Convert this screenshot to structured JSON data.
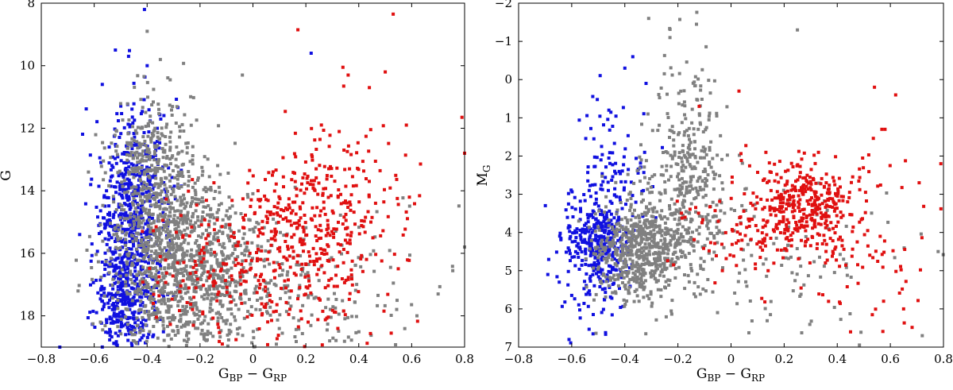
{
  "chart_data": [
    {
      "type": "scatter",
      "panel": "left",
      "xlabel": "G_BP − G_RP",
      "xlabel_main": "G",
      "xlabel_sub1": "BP",
      "xlabel_minus": " − G",
      "xlabel_sub2": "RP",
      "ylabel": "G",
      "ylabel_main": "G",
      "ylabel_sub": "",
      "xlim": [
        -0.8,
        0.8
      ],
      "ylim": [
        19,
        8
      ],
      "y_inverted": true,
      "xticks": [
        -0.8,
        -0.6,
        -0.4,
        -0.2,
        0,
        0.2,
        0.4,
        0.6,
        0.8
      ],
      "xtick_labels": [
        "−0.8",
        "−0.6",
        "−0.4",
        "−0.2",
        "0",
        "0.2",
        "0.4",
        "0.6",
        "0.8"
      ],
      "yticks": [
        8,
        10,
        12,
        14,
        16,
        18
      ],
      "ytick_labels": [
        "8",
        "10",
        "12",
        "14",
        "16",
        "18"
      ],
      "series": [
        {
          "name": "blue",
          "color": "#1010e0",
          "count": 900,
          "distribution": "clusters",
          "clusters": [
            {
              "weight": 0.5,
              "x_mean": -0.46,
              "x_sd": 0.06,
              "y_mean": 15.6,
              "y_sd": 1.5
            },
            {
              "weight": 0.3,
              "x_mean": -0.5,
              "x_sd": 0.05,
              "y_mean": 17.5,
              "y_sd": 1.0
            },
            {
              "weight": 0.2,
              "x_mean": -0.44,
              "x_sd": 0.08,
              "y_mean": 13.5,
              "y_sd": 1.2
            }
          ],
          "highlights": [
            {
              "x": -0.41,
              "y": 8.2
            },
            {
              "x": -0.52,
              "y": 9.5
            },
            {
              "x": -0.47,
              "y": 9.7
            },
            {
              "x": -0.4,
              "y": 10.0
            },
            {
              "x": 0.22,
              "y": 9.6
            },
            {
              "x": -0.73,
              "y": 19.0
            }
          ]
        },
        {
          "name": "gray",
          "color": "#808080",
          "count": 1700,
          "distribution": "clusters",
          "clusters": [
            {
              "weight": 0.45,
              "x_mean": -0.33,
              "x_sd": 0.11,
              "y_mean": 15.8,
              "y_sd": 1.6
            },
            {
              "weight": 0.3,
              "x_mean": -0.18,
              "x_sd": 0.14,
              "y_mean": 16.7,
              "y_sd": 1.3
            },
            {
              "weight": 0.15,
              "x_mean": -0.38,
              "x_sd": 0.08,
              "y_mean": 13.0,
              "y_sd": 1.1
            },
            {
              "weight": 0.1,
              "x_mean": 0.2,
              "x_sd": 0.25,
              "y_mean": 17.2,
              "y_sd": 1.2
            }
          ],
          "highlights": [
            {
              "x": -0.4,
              "y": 8.9
            },
            {
              "x": -0.35,
              "y": 9.8
            },
            {
              "x": -0.04,
              "y": 10.3
            },
            {
              "x": 0.62,
              "y": 18.0
            },
            {
              "x": 0.8,
              "y": 15.8
            },
            {
              "x": 0.7,
              "y": 17.3
            }
          ]
        },
        {
          "name": "red",
          "color": "#e01010",
          "count": 600,
          "distribution": "clusters",
          "clusters": [
            {
              "weight": 0.55,
              "x_mean": 0.22,
              "x_sd": 0.11,
              "y_mean": 15.3,
              "y_sd": 1.5
            },
            {
              "weight": 0.2,
              "x_mean": 0.05,
              "x_sd": 0.12,
              "y_mean": 16.5,
              "y_sd": 1.2
            },
            {
              "weight": 0.15,
              "x_mean": -0.2,
              "x_sd": 0.1,
              "y_mean": 16.3,
              "y_sd": 1.1
            },
            {
              "weight": 0.1,
              "x_mean": 0.45,
              "x_sd": 0.12,
              "y_mean": 14.2,
              "y_sd": 1.8
            }
          ],
          "highlights": [
            {
              "x": 0.53,
              "y": 8.35
            },
            {
              "x": 0.17,
              "y": 8.85
            },
            {
              "x": 0.34,
              "y": 10.05
            },
            {
              "x": 0.44,
              "y": 10.7
            },
            {
              "x": 0.36,
              "y": 10.3
            },
            {
              "x": 0.79,
              "y": 11.65
            },
            {
              "x": 0.8,
              "y": 12.8
            },
            {
              "x": 0.58,
              "y": 11.9
            },
            {
              "x": 0.5,
              "y": 10.2
            }
          ]
        }
      ]
    },
    {
      "type": "scatter",
      "panel": "right",
      "xlabel": "G_BP − G_RP",
      "xlabel_main": "G",
      "xlabel_sub1": "BP",
      "xlabel_minus": " − G",
      "xlabel_sub2": "RP",
      "ylabel": "M_G",
      "ylabel_main": "M",
      "ylabel_sub": "G",
      "xlim": [
        -0.8,
        0.8
      ],
      "ylim": [
        7,
        -2
      ],
      "y_inverted": true,
      "xticks": [
        -0.8,
        -0.6,
        -0.4,
        -0.2,
        0,
        0.2,
        0.4,
        0.6,
        0.8
      ],
      "xtick_labels": [
        "−0.8",
        "−0.6",
        "−0.4",
        "−0.2",
        "0",
        "0.2",
        "0.4",
        "0.6",
        "0.8"
      ],
      "yticks": [
        -2,
        -1,
        0,
        1,
        2,
        3,
        4,
        5,
        6,
        7
      ],
      "ytick_labels": [
        "−2",
        "−1",
        "0",
        "1",
        "2",
        "3",
        "4",
        "5",
        "6",
        "7"
      ],
      "series": [
        {
          "name": "blue",
          "color": "#1010e0",
          "count": 480,
          "distribution": "clusters",
          "clusters": [
            {
              "weight": 0.7,
              "x_mean": -0.5,
              "x_sd": 0.06,
              "y_mean": 4.2,
              "y_sd": 0.6
            },
            {
              "weight": 0.2,
              "x_mean": -0.45,
              "x_sd": 0.07,
              "y_mean": 2.6,
              "y_sd": 1.0
            },
            {
              "weight": 0.1,
              "x_mean": -0.52,
              "x_sd": 0.08,
              "y_mean": 5.6,
              "y_sd": 0.7
            }
          ],
          "highlights": [
            {
              "x": -0.37,
              "y": -0.6
            },
            {
              "x": -0.32,
              "y": 0.1
            },
            {
              "x": -0.4,
              "y": -0.3
            },
            {
              "x": -0.46,
              "y": 0.8
            },
            {
              "x": -0.69,
              "y": 5.1
            },
            {
              "x": -0.61,
              "y": 6.8
            }
          ]
        },
        {
          "name": "gray",
          "color": "#808080",
          "count": 1100,
          "distribution": "clusters",
          "clusters": [
            {
              "weight": 0.5,
              "x_mean": -0.35,
              "x_sd": 0.08,
              "y_mean": 4.5,
              "y_sd": 0.6
            },
            {
              "weight": 0.25,
              "x_mean": -0.2,
              "x_sd": 0.1,
              "y_mean": 3.5,
              "y_sd": 1.1
            },
            {
              "weight": 0.15,
              "x_mean": -0.15,
              "x_sd": 0.06,
              "y_mean": 1.5,
              "y_sd": 1.2
            },
            {
              "weight": 0.1,
              "x_mean": 0.15,
              "x_sd": 0.25,
              "y_mean": 5.0,
              "y_sd": 1.0
            }
          ],
          "highlights": [
            {
              "x": -0.31,
              "y": -1.6
            },
            {
              "x": 0.25,
              "y": -1.3
            },
            {
              "x": -0.13,
              "y": -1.45
            },
            {
              "x": -0.23,
              "y": -1.1
            },
            {
              "x": 0.78,
              "y": 4.5
            },
            {
              "x": 0.72,
              "y": 6.7
            }
          ]
        },
        {
          "name": "red",
          "color": "#e01010",
          "count": 520,
          "distribution": "clusters",
          "clusters": [
            {
              "weight": 0.6,
              "x_mean": 0.28,
              "x_sd": 0.1,
              "y_mean": 3.2,
              "y_sd": 0.55
            },
            {
              "weight": 0.25,
              "x_mean": 0.1,
              "x_sd": 0.15,
              "y_mean": 3.9,
              "y_sd": 0.7
            },
            {
              "weight": 0.15,
              "x_mean": 0.5,
              "x_sd": 0.12,
              "y_mean": 4.2,
              "y_sd": 1.2
            }
          ],
          "highlights": [
            {
              "x": 0.03,
              "y": 0.3
            },
            {
              "x": 0.54,
              "y": 0.2
            },
            {
              "x": 0.62,
              "y": 0.4
            },
            {
              "x": -0.12,
              "y": 0.7
            },
            {
              "x": 0.79,
              "y": 2.2
            },
            {
              "x": 0.45,
              "y": 6.6
            },
            {
              "x": 0.65,
              "y": 6.0
            },
            {
              "x": 0.58,
              "y": 1.3
            }
          ]
        }
      ]
    }
  ]
}
